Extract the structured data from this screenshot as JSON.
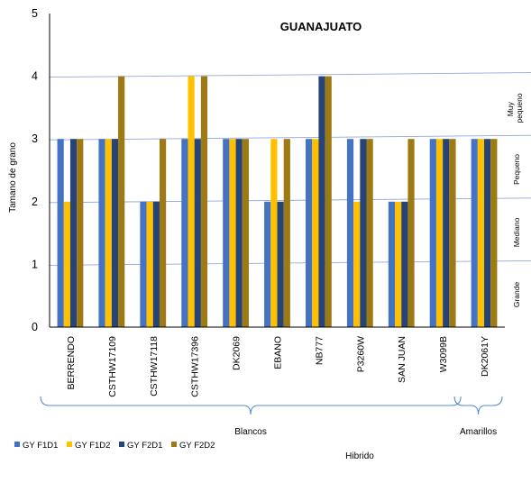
{
  "chart_data": {
    "type": "bar",
    "title": "GUANAJUATO",
    "ylabel": "Tamano  de grano",
    "xlabel": "Hibrido",
    "ylim": [
      0,
      5
    ],
    "yticks": [
      "0",
      "1",
      "2",
      "3",
      "4",
      "5"
    ],
    "categories": [
      "BERRENDO",
      "CSTHW17109",
      "CSTHW17118",
      "CSTHW17396",
      "DK2069",
      "EBANO",
      "NB777",
      "P3260W",
      "SAN JUAN",
      "W3099B",
      "DK2061Y"
    ],
    "series": [
      {
        "name": "GY F1D1",
        "color": "#4472c4",
        "values": [
          3,
          3,
          2,
          3,
          3,
          2,
          3,
          3,
          2,
          3,
          3
        ]
      },
      {
        "name": "GY F1D2",
        "color": "#ffc000",
        "values": [
          2,
          3,
          2,
          4,
          3,
          3,
          3,
          2,
          2,
          3,
          3
        ]
      },
      {
        "name": "GY F2D1",
        "color": "#264478",
        "values": [
          3,
          3,
          2,
          3,
          3,
          2,
          4,
          3,
          2,
          3,
          3
        ]
      },
      {
        "name": "GY F2D2",
        "color": "#9e7a14",
        "values": [
          3,
          4,
          3,
          4,
          3,
          3,
          4,
          3,
          3,
          3,
          3
        ]
      }
    ],
    "groups": [
      {
        "label": "Blancos",
        "first": 0,
        "last": 9
      },
      {
        "label": "Amarillos",
        "first": 10,
        "last": 10
      }
    ],
    "size_zones": [
      "Muy pequeno",
      "Pequeno",
      "Mediano",
      "Grande"
    ],
    "legend_position": "bottom-left",
    "grid": true
  }
}
